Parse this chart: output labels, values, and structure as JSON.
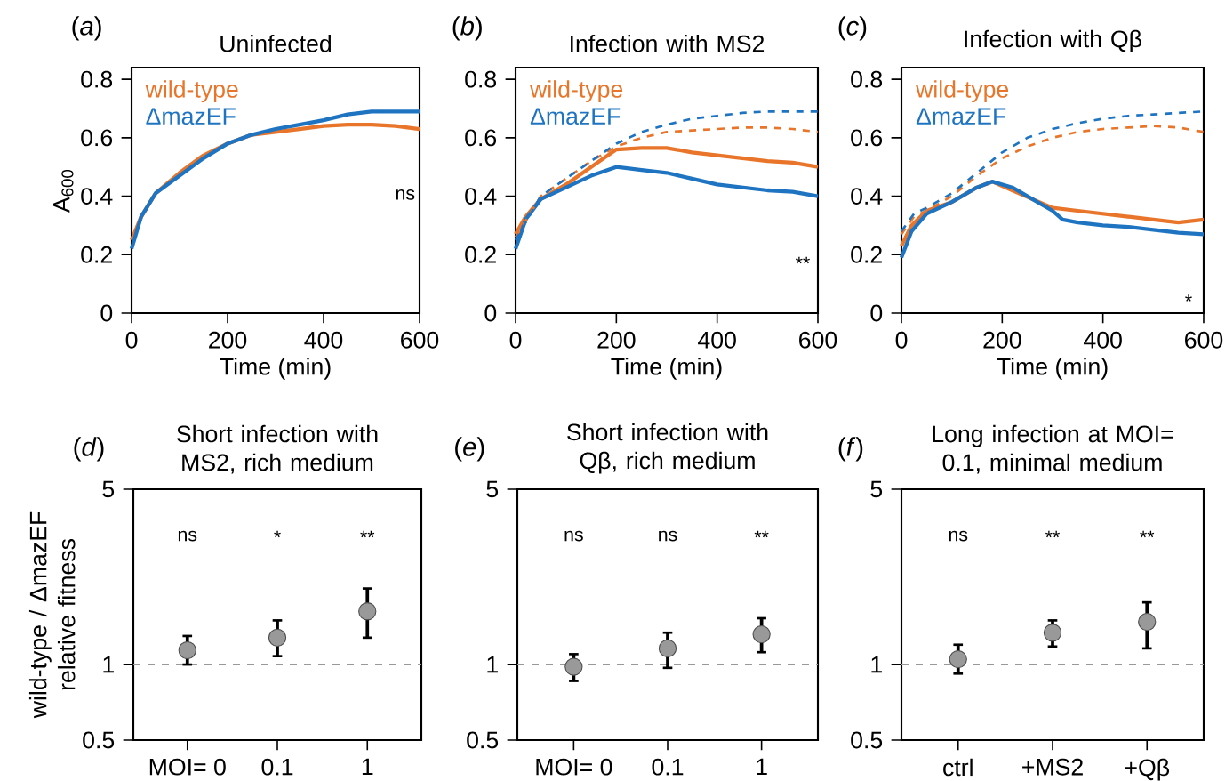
{
  "chart_data": [
    {
      "type": "line",
      "title": "Uninfected",
      "xlabel": "Time (min)",
      "ylabel": "A$_{600}$",
      "xlim": [
        0,
        600
      ],
      "ylim": [
        0,
        0.84
      ],
      "xticks": [
        0,
        200,
        400,
        600
      ],
      "yticks": [
        0,
        0.2,
        0.4,
        0.6,
        0.8
      ],
      "legend": "top left",
      "series": [
        {
          "name": "wild-type",
          "color": "#e8752a",
          "x": [
            0,
            20,
            50,
            100,
            150,
            200,
            250,
            300,
            350,
            400,
            450,
            500,
            550,
            600
          ],
          "values": [
            0.25,
            0.33,
            0.41,
            0.48,
            0.54,
            0.58,
            0.61,
            0.62,
            0.63,
            0.64,
            0.645,
            0.645,
            0.64,
            0.63
          ]
        },
        {
          "name": "ΔmazEF",
          "color": "#1f74c2",
          "x": [
            0,
            20,
            50,
            100,
            150,
            200,
            250,
            300,
            350,
            400,
            450,
            500,
            550,
            600
          ],
          "values": [
            0.22,
            0.33,
            0.41,
            0.47,
            0.53,
            0.58,
            0.61,
            0.63,
            0.645,
            0.66,
            0.68,
            0.69,
            0.69,
            0.69
          ]
        }
      ],
      "annotations": [
        "(*a*)",
        "ns"
      ]
    },
    {
      "type": "line",
      "title": "Infection with MS2",
      "xlabel": "Time (min)",
      "xlim": [
        0,
        600
      ],
      "ylim": [
        0,
        0.84
      ],
      "xticks": [
        0,
        200,
        400,
        600
      ],
      "yticks": [
        0,
        0.2,
        0.4,
        0.6,
        0.8
      ],
      "legend": "top left",
      "series": [
        {
          "name": "wild-type",
          "color": "#e8752a",
          "x": [
            0,
            20,
            50,
            100,
            150,
            200,
            250,
            300,
            350,
            400,
            450,
            500,
            550,
            600
          ],
          "values": [
            0.27,
            0.33,
            0.39,
            0.44,
            0.5,
            0.56,
            0.565,
            0.565,
            0.55,
            0.54,
            0.53,
            0.52,
            0.515,
            0.5
          ]
        },
        {
          "name": "ΔmazEF",
          "color": "#1f74c2",
          "x": [
            0,
            20,
            50,
            100,
            150,
            200,
            250,
            300,
            350,
            400,
            450,
            500,
            550,
            600
          ],
          "values": [
            0.22,
            0.32,
            0.39,
            0.43,
            0.47,
            0.5,
            0.49,
            0.48,
            0.46,
            0.44,
            0.43,
            0.42,
            0.415,
            0.4
          ]
        },
        {
          "color": "#e8752a",
          "line_style": "dashed",
          "x": [
            0,
            50,
            100,
            150,
            200,
            250,
            300,
            350,
            400,
            450,
            500,
            550,
            600
          ],
          "values": [
            0.26,
            0.4,
            0.46,
            0.52,
            0.57,
            0.6,
            0.62,
            0.625,
            0.63,
            0.635,
            0.635,
            0.63,
            0.62
          ]
        },
        {
          "color": "#1f74c2",
          "line_style": "dashed",
          "x": [
            0,
            50,
            100,
            150,
            200,
            250,
            300,
            350,
            400,
            450,
            500,
            550,
            600
          ],
          "values": [
            0.25,
            0.4,
            0.46,
            0.52,
            0.58,
            0.62,
            0.645,
            0.665,
            0.675,
            0.685,
            0.69,
            0.69,
            0.69
          ]
        }
      ],
      "annotations": [
        "(*b*)",
        "**"
      ]
    },
    {
      "type": "line",
      "title": "Infection with Qβ",
      "xlabel": "Time (min)",
      "xlim": [
        0,
        600
      ],
      "ylim": [
        0,
        0.84
      ],
      "xticks": [
        0,
        200,
        400,
        600
      ],
      "yticks": [
        0,
        0.2,
        0.4,
        0.6,
        0.8
      ],
      "legend": "top left",
      "series": [
        {
          "name": "wild-type",
          "color": "#e8752a",
          "x": [
            0,
            20,
            50,
            100,
            150,
            180,
            220,
            260,
            300,
            350,
            400,
            450,
            500,
            550,
            600
          ],
          "values": [
            0.23,
            0.3,
            0.35,
            0.38,
            0.43,
            0.45,
            0.42,
            0.39,
            0.36,
            0.35,
            0.34,
            0.33,
            0.32,
            0.31,
            0.32
          ]
        },
        {
          "name": "ΔmazEF",
          "color": "#1f74c2",
          "x": [
            0,
            20,
            50,
            100,
            150,
            180,
            220,
            260,
            300,
            320,
            350,
            400,
            450,
            500,
            550,
            600
          ],
          "values": [
            0.19,
            0.28,
            0.34,
            0.38,
            0.43,
            0.45,
            0.43,
            0.39,
            0.35,
            0.32,
            0.31,
            0.3,
            0.295,
            0.285,
            0.275,
            0.27
          ]
        },
        {
          "color": "#e8752a",
          "line_style": "dashed",
          "x": [
            0,
            25,
            50,
            100,
            150,
            200,
            250,
            300,
            350,
            400,
            450,
            500,
            550,
            600
          ],
          "values": [
            0.27,
            0.33,
            0.35,
            0.4,
            0.47,
            0.53,
            0.57,
            0.6,
            0.62,
            0.63,
            0.635,
            0.64,
            0.635,
            0.62
          ]
        },
        {
          "color": "#1f74c2",
          "line_style": "dashed",
          "x": [
            0,
            25,
            50,
            100,
            150,
            200,
            250,
            300,
            350,
            400,
            450,
            500,
            550,
            600
          ],
          "values": [
            0.28,
            0.34,
            0.36,
            0.41,
            0.48,
            0.55,
            0.6,
            0.63,
            0.65,
            0.665,
            0.675,
            0.68,
            0.685,
            0.69
          ]
        }
      ],
      "annotations": [
        "(*c*)",
        "*"
      ]
    },
    {
      "type": "scatter",
      "title": "Short infection with MS2, rich medium",
      "ylabel": "wild-type / ΔmazEF relative fitness",
      "categories": [
        "MOI= 0",
        "0.1",
        "1"
      ],
      "log": true,
      "ylim": [
        0.5,
        5
      ],
      "yticks": [
        0.5,
        1,
        5
      ],
      "marker": "circle",
      "series": [
        {
          "color": "#999999",
          "values": [
            1.14,
            1.28,
            1.63
          ],
          "errors": [
            [
              1.0,
              1.3
            ],
            [
              1.08,
              1.5
            ],
            [
              1.28,
              2.01
            ]
          ]
        }
      ],
      "ref_lines": [
        {
          "axis": "y",
          "value": 1,
          "color": "#999999",
          "line_style": "dashed"
        }
      ],
      "annotations": [
        "(*d*)",
        "ns",
        "*",
        "**"
      ]
    },
    {
      "type": "scatter",
      "title": "Short infection with Qβ, rich medium",
      "categories": [
        "MOI= 0",
        "0.1",
        "1"
      ],
      "log": true,
      "ylim": [
        0.5,
        5
      ],
      "yticks": [
        0.5,
        1,
        5
      ],
      "marker": "circle",
      "series": [
        {
          "color": "#999999",
          "values": [
            0.98,
            1.16,
            1.32
          ],
          "errors": [
            [
              0.86,
              1.1
            ],
            [
              0.97,
              1.34
            ],
            [
              1.12,
              1.53
            ]
          ]
        }
      ],
      "ref_lines": [
        {
          "axis": "y",
          "value": 1,
          "color": "#999999",
          "line_style": "dashed"
        }
      ],
      "annotations": [
        "(*e*)",
        "ns",
        "ns",
        "**"
      ]
    },
    {
      "type": "scatter",
      "title": "Long infection at MOI= 0.1, minimal medium",
      "categories": [
        "ctrl",
        "+MS2",
        "+Qβ"
      ],
      "log": true,
      "ylim": [
        0.5,
        5
      ],
      "yticks": [
        0.5,
        1,
        5
      ],
      "marker": "circle",
      "series": [
        {
          "color": "#999999",
          "values": [
            1.05,
            1.34,
            1.48
          ],
          "errors": [
            [
              0.92,
              1.2
            ],
            [
              1.18,
              1.5
            ],
            [
              1.16,
              1.77
            ]
          ]
        }
      ],
      "ref_lines": [
        {
          "axis": "y",
          "value": 1,
          "color": "#999999",
          "line_style": "dashed"
        }
      ],
      "annotations": [
        "(*f*)",
        "ns",
        "**",
        "**"
      ]
    }
  ]
}
